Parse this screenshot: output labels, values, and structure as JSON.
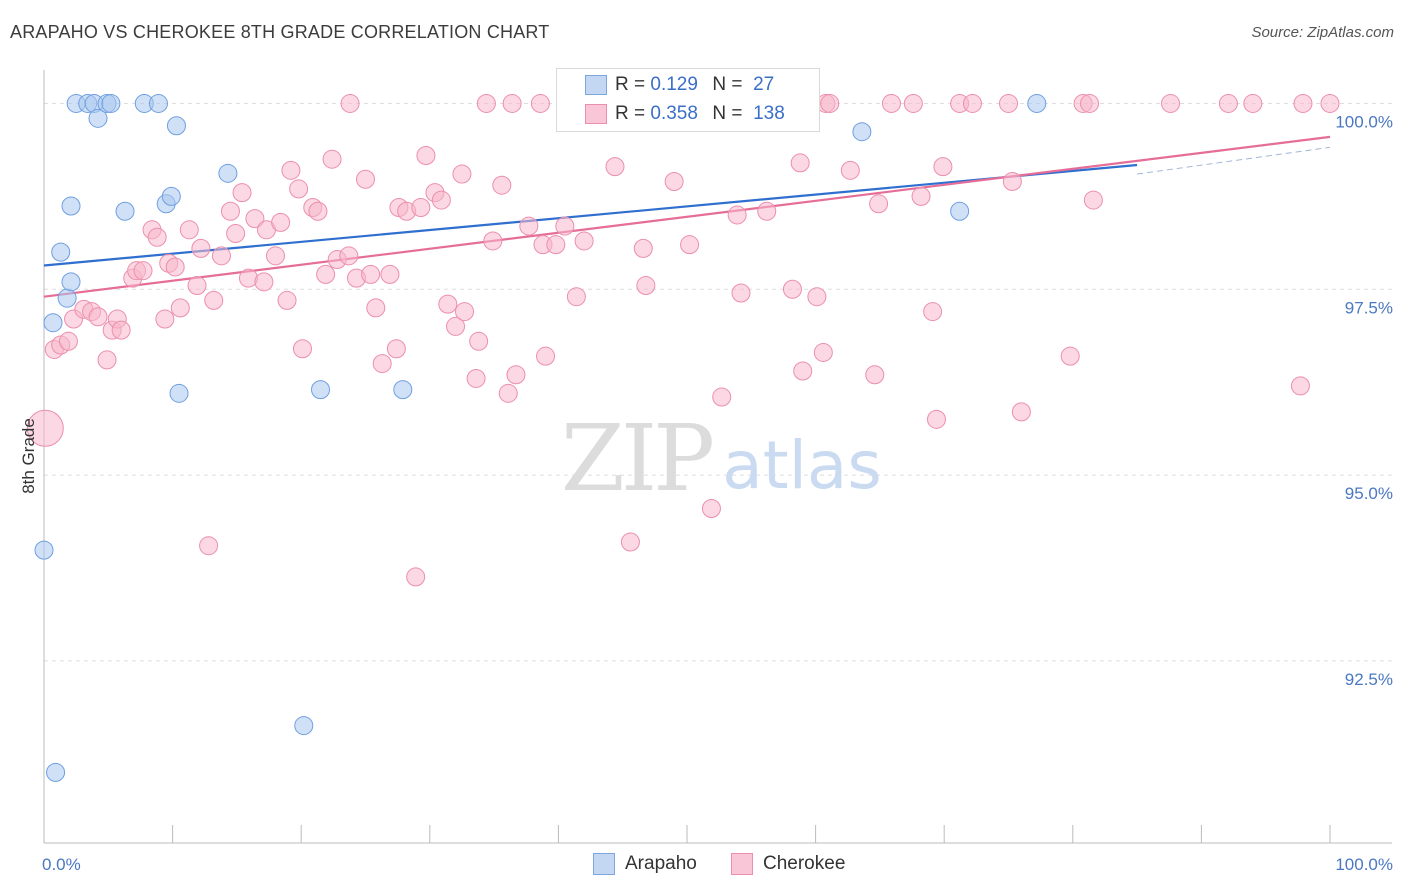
{
  "title": "ARAPAHO VS CHEROKEE 8TH GRADE CORRELATION CHART",
  "source": "Source: ZipAtlas.com",
  "watermark": {
    "zip": "ZIP",
    "atlas": "atlas"
  },
  "legend": {
    "rows": [
      {
        "r_label": "R =",
        "r_value": "0.129",
        "n_label": "N =",
        "n_value": "27"
      },
      {
        "r_label": "R =",
        "r_value": "0.358",
        "n_label": "N =",
        "n_value": "138"
      }
    ]
  },
  "bottom_legend": {
    "arapaho": "Arapaho",
    "cherokee": "Cherokee"
  },
  "colors": {
    "arapaho_fill": "#aac8f0",
    "arapaho_stroke": "#6f9fe0",
    "arapaho_line": "#2f6fcf",
    "cherokee_fill": "#f7b8cc",
    "cherokee_stroke": "#ec8fad",
    "cherokee_line": "#e56d98",
    "tick_text": "#4a78c2",
    "grid": "#dddddd"
  },
  "chart_data": {
    "type": "scatter",
    "title": "ARAPAHO VS CHEROKEE 8TH GRADE CORRELATION CHART",
    "xlabel": "",
    "ylabel": "8th Grade",
    "xlim": [
      0,
      100
    ],
    "ylim": [
      90.05,
      100.45
    ],
    "x_tick_labels": [
      "0.0%",
      "100.0%"
    ],
    "y_ticks": [
      {
        "value": 100.0,
        "label": "100.0%"
      },
      {
        "value": 97.5,
        "label": "97.5%"
      },
      {
        "value": 95.0,
        "label": "95.0%"
      },
      {
        "value": 92.5,
        "label": "92.5%"
      }
    ],
    "grid": true,
    "series": [
      {
        "name": "Arapaho",
        "r": 0.129,
        "n": 27,
        "trend": {
          "x": [
            0,
            100
          ],
          "y": [
            97.82,
            99.41
          ]
        },
        "points": [
          [
            0.0,
            93.99,
            9
          ],
          [
            0.9,
            91.0,
            9
          ],
          [
            0.7,
            97.05,
            9
          ],
          [
            1.3,
            98.0,
            9
          ],
          [
            1.8,
            97.38,
            9
          ],
          [
            2.1,
            97.6,
            9
          ],
          [
            2.1,
            98.62,
            9
          ],
          [
            2.5,
            100.0,
            9
          ],
          [
            3.4,
            100.0,
            9
          ],
          [
            3.9,
            100.0,
            9
          ],
          [
            4.2,
            99.8,
            9
          ],
          [
            4.9,
            100.0,
            9
          ],
          [
            5.2,
            100.0,
            9
          ],
          [
            6.3,
            98.55,
            9
          ],
          [
            7.8,
            100.0,
            9
          ],
          [
            8.9,
            100.0,
            9
          ],
          [
            9.5,
            98.65,
            9
          ],
          [
            9.9,
            98.75,
            9
          ],
          [
            10.3,
            99.7,
            9
          ],
          [
            10.5,
            96.1,
            9
          ],
          [
            14.3,
            99.06,
            9
          ],
          [
            20.2,
            91.63,
            9
          ],
          [
            21.5,
            96.15,
            9
          ],
          [
            27.9,
            96.15,
            9
          ],
          [
            63.6,
            99.62,
            9
          ],
          [
            71.2,
            98.55,
            9
          ],
          [
            77.2,
            100.0,
            9
          ]
        ]
      },
      {
        "name": "Cherokee",
        "r": 0.358,
        "n": 138,
        "trend": {
          "x": [
            0,
            100
          ],
          "y": [
            97.4,
            99.55
          ]
        },
        "dashed_extension": {
          "x": [
            85,
            100
          ],
          "y": [
            99.05,
            99.41
          ]
        },
        "points": [
          [
            0.1,
            95.63,
            18
          ],
          [
            0.8,
            96.69,
            9
          ],
          [
            1.3,
            96.75,
            9
          ],
          [
            1.9,
            96.8,
            9
          ],
          [
            2.3,
            97.1,
            9
          ],
          [
            3.1,
            97.23,
            9
          ],
          [
            3.7,
            97.2,
            9
          ],
          [
            4.2,
            97.13,
            9
          ],
          [
            4.9,
            96.55,
            9
          ],
          [
            5.3,
            96.95,
            9
          ],
          [
            5.7,
            97.1,
            9
          ],
          [
            6.0,
            96.95,
            9
          ],
          [
            6.9,
            97.65,
            9
          ],
          [
            7.2,
            97.75,
            9
          ],
          [
            7.7,
            97.75,
            9
          ],
          [
            8.4,
            98.3,
            9
          ],
          [
            8.8,
            98.2,
            9
          ],
          [
            9.4,
            97.1,
            9
          ],
          [
            9.7,
            97.85,
            9
          ],
          [
            10.2,
            97.8,
            9
          ],
          [
            10.6,
            97.25,
            9
          ],
          [
            11.3,
            98.3,
            9
          ],
          [
            11.9,
            97.55,
            9
          ],
          [
            12.2,
            98.05,
            9
          ],
          [
            12.8,
            94.05,
            9
          ],
          [
            13.2,
            97.35,
            9
          ],
          [
            13.8,
            97.95,
            9
          ],
          [
            14.5,
            98.55,
            9
          ],
          [
            14.9,
            98.25,
            9
          ],
          [
            15.4,
            98.8,
            9
          ],
          [
            15.9,
            97.65,
            9
          ],
          [
            16.4,
            98.45,
            9
          ],
          [
            17.1,
            97.6,
            9
          ],
          [
            17.3,
            98.3,
            9
          ],
          [
            18.0,
            97.95,
            9
          ],
          [
            18.4,
            98.4,
            9
          ],
          [
            18.9,
            97.35,
            9
          ],
          [
            19.2,
            99.1,
            9
          ],
          [
            19.8,
            98.85,
            9
          ],
          [
            20.1,
            96.7,
            9
          ],
          [
            20.9,
            98.6,
            9
          ],
          [
            21.3,
            98.55,
            9
          ],
          [
            21.9,
            97.7,
            9
          ],
          [
            22.4,
            99.25,
            9
          ],
          [
            22.8,
            97.9,
            9
          ],
          [
            23.7,
            97.95,
            9
          ],
          [
            23.8,
            100.0,
            9
          ],
          [
            24.3,
            97.65,
            9
          ],
          [
            25.0,
            98.98,
            9
          ],
          [
            25.4,
            97.7,
            9
          ],
          [
            25.8,
            97.25,
            9
          ],
          [
            26.3,
            96.5,
            9
          ],
          [
            26.9,
            97.7,
            9
          ],
          [
            27.4,
            96.7,
            9
          ],
          [
            27.6,
            98.6,
            9
          ],
          [
            28.2,
            98.55,
            9
          ],
          [
            28.9,
            93.63,
            9
          ],
          [
            29.3,
            98.6,
            9
          ],
          [
            29.7,
            99.3,
            9
          ],
          [
            30.4,
            98.8,
            9
          ],
          [
            30.9,
            98.7,
            9
          ],
          [
            31.4,
            97.3,
            9
          ],
          [
            32.0,
            97.0,
            9
          ],
          [
            32.5,
            99.05,
            9
          ],
          [
            32.7,
            97.2,
            9
          ],
          [
            33.6,
            96.3,
            9
          ],
          [
            33.8,
            96.8,
            9
          ],
          [
            34.4,
            100.0,
            9
          ],
          [
            34.9,
            98.15,
            9
          ],
          [
            35.6,
            98.9,
            9
          ],
          [
            36.1,
            96.1,
            9
          ],
          [
            36.4,
            100.0,
            9
          ],
          [
            36.7,
            96.35,
            9
          ],
          [
            37.7,
            98.35,
            9
          ],
          [
            38.6,
            100.0,
            9
          ],
          [
            38.8,
            98.1,
            9
          ],
          [
            39.0,
            96.6,
            9
          ],
          [
            39.8,
            98.1,
            9
          ],
          [
            40.5,
            98.35,
            9
          ],
          [
            41.0,
            100.0,
            9
          ],
          [
            41.4,
            97.4,
            9
          ],
          [
            42.0,
            98.15,
            9
          ],
          [
            44.4,
            99.15,
            9
          ],
          [
            45.6,
            94.1,
            9
          ],
          [
            46.6,
            98.05,
            9
          ],
          [
            46.8,
            97.55,
            9
          ],
          [
            47.3,
            100.0,
            9
          ],
          [
            49.0,
            98.95,
            9
          ],
          [
            50.2,
            98.1,
            9
          ],
          [
            50.6,
            100.0,
            9
          ],
          [
            51.9,
            94.55,
            9
          ],
          [
            52.7,
            96.05,
            9
          ],
          [
            53.3,
            100.0,
            9
          ],
          [
            53.9,
            98.5,
            9
          ],
          [
            54.2,
            97.45,
            9
          ],
          [
            55.9,
            100.0,
            9
          ],
          [
            56.2,
            98.55,
            9
          ],
          [
            58.2,
            97.5,
            9
          ],
          [
            58.8,
            99.2,
            9
          ],
          [
            59.0,
            96.4,
            9
          ],
          [
            60.1,
            97.4,
            9
          ],
          [
            60.6,
            96.65,
            9
          ],
          [
            60.8,
            100.0,
            9
          ],
          [
            61.1,
            100.0,
            9
          ],
          [
            62.7,
            99.1,
            9
          ],
          [
            64.6,
            96.35,
            9
          ],
          [
            64.9,
            98.65,
            9
          ],
          [
            65.9,
            100.0,
            9
          ],
          [
            67.6,
            100.0,
            9
          ],
          [
            68.2,
            98.75,
            9
          ],
          [
            69.1,
            97.2,
            9
          ],
          [
            69.4,
            95.75,
            9
          ],
          [
            69.9,
            99.15,
            9
          ],
          [
            71.2,
            100.0,
            9
          ],
          [
            72.2,
            100.0,
            9
          ],
          [
            75.0,
            100.0,
            9
          ],
          [
            75.3,
            98.95,
            9
          ],
          [
            76.0,
            95.85,
            9
          ],
          [
            79.8,
            96.6,
            9
          ],
          [
            80.8,
            100.0,
            9
          ],
          [
            81.3,
            100.0,
            9
          ],
          [
            81.6,
            98.7,
            9
          ],
          [
            87.6,
            100.0,
            9
          ],
          [
            92.1,
            100.0,
            9
          ],
          [
            94.0,
            100.0,
            9
          ],
          [
            97.7,
            96.2,
            9
          ],
          [
            97.9,
            100.0,
            9
          ],
          [
            100.0,
            100.0,
            9
          ]
        ]
      }
    ]
  }
}
